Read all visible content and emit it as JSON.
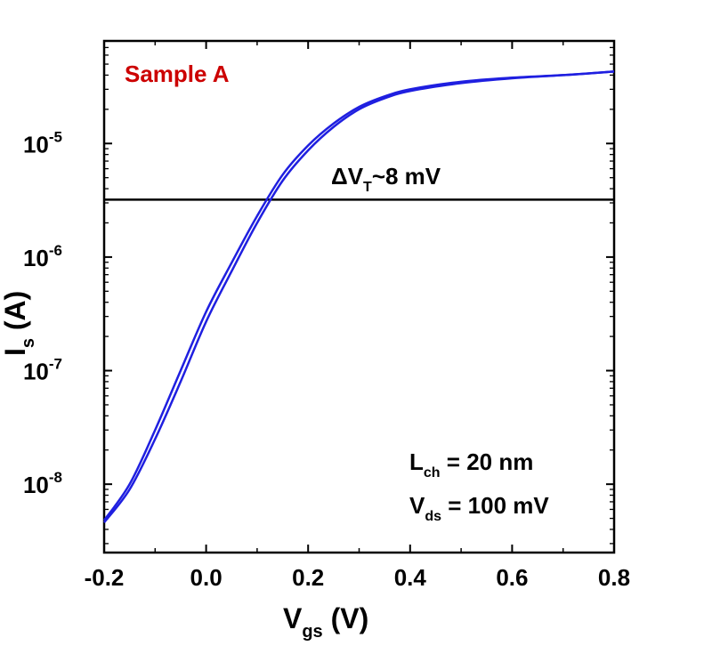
{
  "chart_data": {
    "type": "line",
    "x_scale": "linear",
    "y_scale": "log",
    "xlim": [
      -0.2,
      0.8
    ],
    "ylim": [
      2.5e-09,
      8e-05
    ],
    "x_ticks": [
      -0.2,
      0.0,
      0.2,
      0.4,
      0.6,
      0.8
    ],
    "x_tick_labels": [
      "-0.2",
      "0.0",
      "0.2",
      "0.4",
      "0.6",
      "0.8"
    ],
    "y_ticks": [
      1e-08,
      1e-07,
      1e-06,
      1e-05
    ],
    "y_tick_labels": [
      {
        "base": "10",
        "exp": "-8"
      },
      {
        "base": "10",
        "exp": "-7"
      },
      {
        "base": "10",
        "exp": "-6"
      },
      {
        "base": "10",
        "exp": "-5"
      }
    ],
    "xlabel": {
      "main": "V",
      "sub": "gs",
      "unit": " (V)"
    },
    "ylabel": {
      "main": "I",
      "sub": "s",
      "unit": " (A)"
    },
    "grid": false,
    "reference_line": {
      "y": 3.2e-06,
      "color": "#000000"
    },
    "series": [
      {
        "color": "#1f1fe0",
        "x": [
          -0.2,
          -0.15,
          -0.1,
          -0.05,
          0.0,
          0.05,
          0.1,
          0.15,
          0.2,
          0.25,
          0.3,
          0.35,
          0.4,
          0.5,
          0.6,
          0.7,
          0.8
        ],
        "y": [
          4.8e-09,
          1e-08,
          3e-08,
          1e-07,
          3.3e-07,
          8.9e-07,
          2.3e-06,
          5.3e-06,
          9.6e-06,
          1.5e-05,
          2.1e-05,
          2.6e-05,
          3e-05,
          3.5e-05,
          3.8e-05,
          4e-05,
          4.3e-05
        ]
      },
      {
        "color": "#1f1fe0",
        "x": [
          -0.2,
          -0.15,
          -0.1,
          -0.05,
          0.0,
          0.05,
          0.1,
          0.15,
          0.2,
          0.25,
          0.3,
          0.35,
          0.4,
          0.5,
          0.6,
          0.7,
          0.8
        ],
        "y": [
          4.6e-09,
          9e-09,
          2.5e-08,
          8e-08,
          2.7e-07,
          7.5e-07,
          2e-06,
          4.7e-06,
          8.7e-06,
          1.4e-05,
          2e-05,
          2.5e-05,
          2.9e-05,
          3.4e-05,
          3.75e-05,
          4e-05,
          4.3e-05
        ]
      }
    ],
    "annotations": {
      "sample": {
        "text": "Sample A",
        "color": "#cc0000"
      },
      "delta_vt": {
        "prefix": "ΔV",
        "sub": "T",
        "suffix": "~8 mV"
      },
      "lch": {
        "main": "L",
        "sub": "ch",
        "rest": " = 20 nm"
      },
      "vds": {
        "main": "V",
        "sub": "ds",
        "rest": " = 100 mV"
      }
    }
  }
}
